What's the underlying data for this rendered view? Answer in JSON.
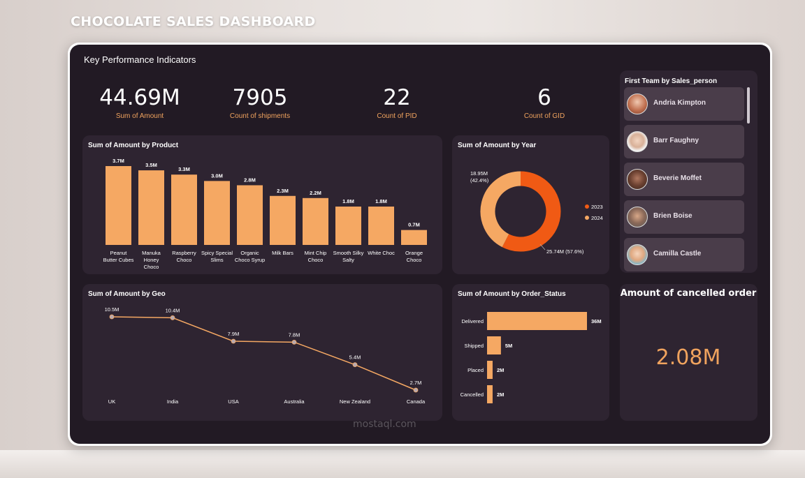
{
  "page_title": "CHOCOLATE SALES DASHBOARD",
  "kpi": {
    "header": "Key Performance Indicators",
    "items": [
      {
        "value": "44.69M",
        "label": "Sum of Amount"
      },
      {
        "value": "7905",
        "label": "Count of shipments"
      },
      {
        "value": "22",
        "label": "Count of PID"
      },
      {
        "value": "6",
        "label": "Count of GID"
      }
    ]
  },
  "team": {
    "title": "First Team by Sales_person",
    "members": [
      {
        "name": "Andria Kimpton"
      },
      {
        "name": "Barr Faughny"
      },
      {
        "name": "Beverie Moffet"
      },
      {
        "name": "Brien Boise"
      },
      {
        "name": "Camilla Castle"
      }
    ]
  },
  "cancelled": {
    "title": "Amount of cancelled order",
    "value": "2.08M"
  },
  "watermark": "mostaql.com",
  "colors": {
    "accent": "#f5a863",
    "series_2023": "#f05a14",
    "series_2024": "#f5a863",
    "panel": "#2e2431",
    "background": "#221a24"
  },
  "chart_data": [
    {
      "type": "bar",
      "title": "Sum of Amount by Product",
      "categories": [
        [
          "Peanut",
          "Butter Cubes"
        ],
        [
          "Manuka",
          "Honey",
          "Choco"
        ],
        [
          "Raspberry",
          "Choco"
        ],
        [
          "Spicy Special",
          "Slims"
        ],
        [
          "Organic",
          "Choco Syrup"
        ],
        [
          "Milk Bars"
        ],
        [
          "Mint Chip",
          "Choco"
        ],
        [
          "Smooth Silky",
          "Salty"
        ],
        [
          "White Choc"
        ],
        [
          "Orange",
          "Choco"
        ]
      ],
      "values": [
        3.7,
        3.5,
        3.3,
        3.0,
        2.8,
        2.3,
        2.2,
        1.8,
        1.8,
        0.7
      ],
      "labels": [
        "3.7M",
        "3.5M",
        "3.3M",
        "3.0M",
        "2.8M",
        "2.3M",
        "2.2M",
        "1.8M",
        "1.8M",
        "0.7M"
      ],
      "ylim": [
        0,
        3.7
      ]
    },
    {
      "type": "pie",
      "title": "Sum of Amount by Year",
      "donut": true,
      "slices": [
        {
          "name": "2023",
          "value": 25.74,
          "label": "25.74M (57.6%)"
        },
        {
          "name": "2024",
          "value": 18.95,
          "label": "18.95M (42.4%)"
        }
      ],
      "legend": "right"
    },
    {
      "type": "line",
      "title": "Sum of Amount by Geo",
      "categories": [
        "UK",
        "India",
        "USA",
        "Australia",
        "New Zealand",
        "Canada"
      ],
      "values": [
        10.5,
        10.4,
        7.9,
        7.8,
        5.4,
        2.7
      ],
      "labels": [
        "10.5M",
        "10.4M",
        "7.9M",
        "7.8M",
        "5.4M",
        "2.7M"
      ],
      "ylim": [
        2.7,
        10.5
      ]
    },
    {
      "type": "bar",
      "orientation": "horizontal",
      "title": "Sum of Amount by Order_Status",
      "categories": [
        "Delivered",
        "Shipped",
        "Placed",
        "Cancelled"
      ],
      "values": [
        36,
        5,
        2,
        2
      ],
      "labels": [
        "36M",
        "5M",
        "2M",
        "2M"
      ],
      "xlim": [
        0,
        36
      ]
    }
  ]
}
